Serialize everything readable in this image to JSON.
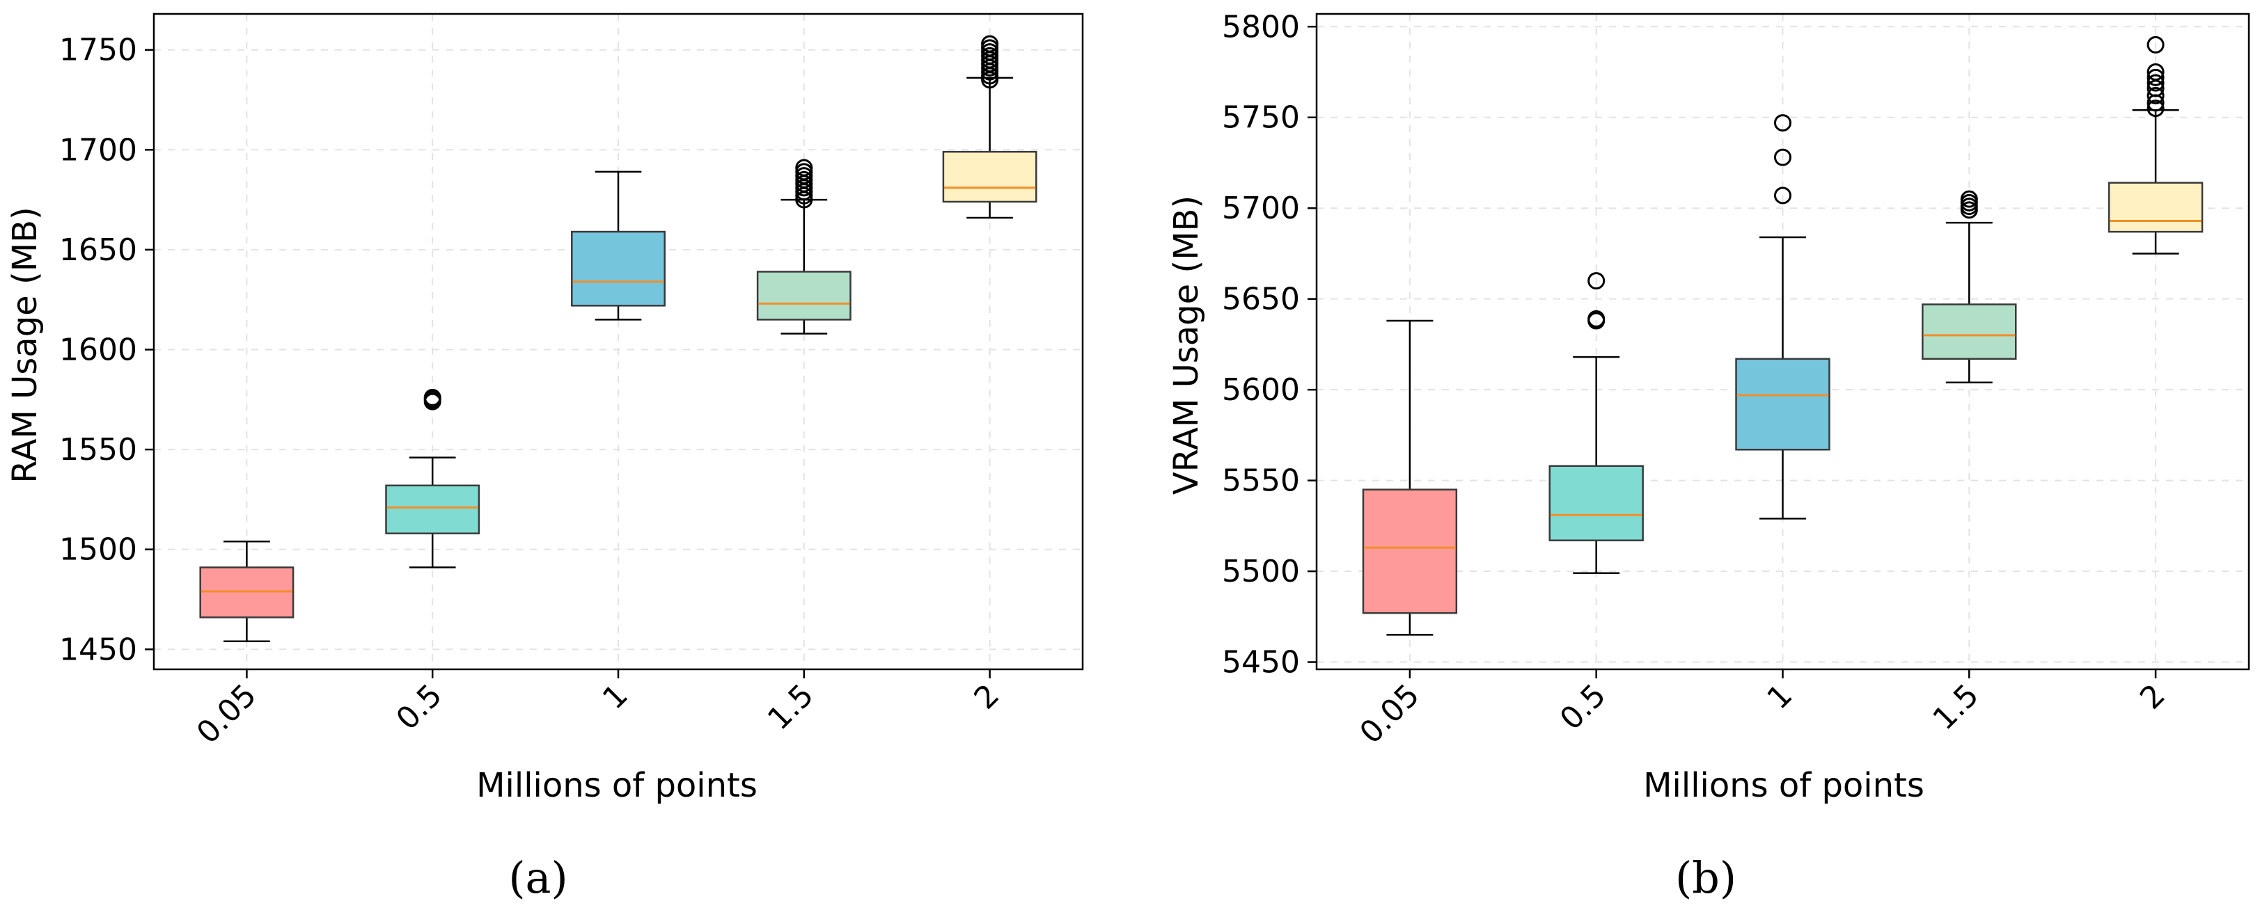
{
  "chart_data": [
    {
      "type": "box",
      "panel_label": "(a)",
      "xlabel": "Millions of points",
      "ylabel": "RAM Usage (MB)",
      "categories": [
        "0.05",
        "0.5",
        "1",
        "1.5",
        "2"
      ],
      "ylim": [
        1440,
        1768
      ],
      "yticks": [
        1450,
        1500,
        1550,
        1600,
        1650,
        1700,
        1750
      ],
      "grid": true,
      "box_colors": [
        "#ff9a9a",
        "#80dcd2",
        "#75c5dd",
        "#b2dfc8",
        "#fff1c1"
      ],
      "median_color": "#f28e2b",
      "boxes": [
        {
          "whisker_low": 1454,
          "q1": 1466,
          "median": 1479,
          "q3": 1491,
          "whisker_high": 1504,
          "outliers": []
        },
        {
          "whisker_low": 1491,
          "q1": 1508,
          "median": 1521,
          "q3": 1532,
          "whisker_high": 1546,
          "outliers": [
            1574,
            1575,
            1576
          ]
        },
        {
          "whisker_low": 1615,
          "q1": 1622,
          "median": 1634,
          "q3": 1659,
          "whisker_high": 1689,
          "outliers": []
        },
        {
          "whisker_low": 1608,
          "q1": 1615,
          "median": 1623,
          "q3": 1639,
          "whisker_high": 1675,
          "outliers": [
            1675,
            1677,
            1679,
            1681,
            1683,
            1685,
            1687,
            1689,
            1691
          ]
        },
        {
          "whisker_low": 1666,
          "q1": 1674,
          "median": 1681,
          "q3": 1699,
          "whisker_high": 1736,
          "outliers": [
            1735,
            1737,
            1739,
            1741,
            1743,
            1745,
            1747,
            1749,
            1751,
            1753
          ]
        }
      ]
    },
    {
      "type": "box",
      "panel_label": "(b)",
      "xlabel": "Millions of points",
      "ylabel": "VRAM Usage (MB)",
      "categories": [
        "0.05",
        "0.5",
        "1",
        "1.5",
        "2"
      ],
      "ylim": [
        5446,
        5807
      ],
      "yticks": [
        5450,
        5500,
        5550,
        5600,
        5650,
        5700,
        5750,
        5800
      ],
      "grid": true,
      "box_colors": [
        "#ff9a9a",
        "#80dcd2",
        "#75c5dd",
        "#b2dfc8",
        "#fff1c1"
      ],
      "median_color": "#f28e2b",
      "boxes": [
        {
          "whisker_low": 5465,
          "q1": 5477,
          "median": 5513,
          "q3": 5545,
          "whisker_high": 5638,
          "outliers": []
        },
        {
          "whisker_low": 5499,
          "q1": 5517,
          "median": 5531,
          "q3": 5558,
          "whisker_high": 5618,
          "outliers": [
            5638,
            5639,
            5660
          ]
        },
        {
          "whisker_low": 5529,
          "q1": 5567,
          "median": 5597,
          "q3": 5617,
          "whisker_high": 5684,
          "outliers": [
            5707,
            5728,
            5747
          ]
        },
        {
          "whisker_low": 5604,
          "q1": 5617,
          "median": 5630,
          "q3": 5647,
          "whisker_high": 5692,
          "outliers": [
            5699,
            5701,
            5703,
            5705
          ]
        },
        {
          "whisker_low": 5675,
          "q1": 5687,
          "median": 5693,
          "q3": 5714,
          "whisker_high": 5754,
          "outliers": [
            5755,
            5758,
            5762,
            5766,
            5769,
            5772,
            5775,
            5790
          ]
        }
      ]
    }
  ]
}
